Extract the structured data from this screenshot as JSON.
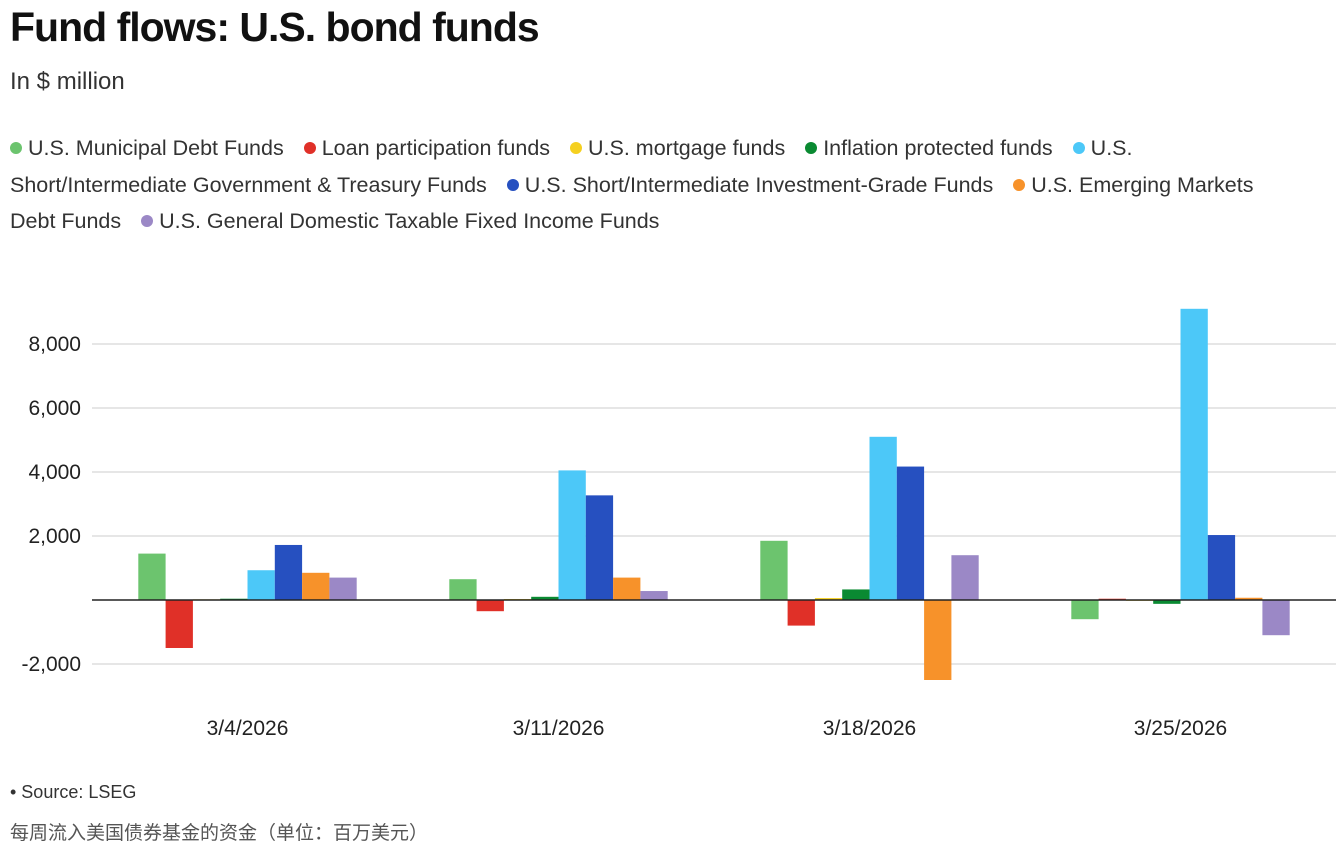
{
  "title": "Fund flows: U.S. bond funds",
  "subtitle": "In $ million",
  "legend": [
    {
      "label": "U.S. Municipal Debt Funds",
      "color": "#6cc46e"
    },
    {
      "label": "Loan participation funds",
      "color": "#e03028"
    },
    {
      "label": "U.S. mortgage funds",
      "color": "#f5d020"
    },
    {
      "label": "Inflation protected funds",
      "color": "#0a8a32"
    },
    {
      "label": "U.S. Short/Intermediate Government & Treasury Funds",
      "color": "#4cc8f8"
    },
    {
      "label": "U.S. Short/Intermediate Investment-Grade Funds",
      "color": "#2650c0"
    },
    {
      "label": "U.S. Emerging Markets Debt Funds",
      "color": "#f7922a"
    },
    {
      "label": "U.S. General Domestic Taxable Fixed Income Funds",
      "color": "#9b88c6"
    }
  ],
  "chart_data": {
    "type": "bar",
    "title": "Fund flows: U.S. bond funds",
    "ylabel": "In $ million",
    "xlabel": "",
    "categories": [
      "3/4/2026",
      "3/11/2026",
      "3/18/2026",
      "3/25/2026"
    ],
    "ylim": [
      -3000,
      9500
    ],
    "yticks": [
      -2000,
      2000,
      4000,
      6000,
      8000
    ],
    "ytick_labels": [
      "-2,000",
      "2,000",
      "4,000",
      "6,000",
      "8,000"
    ],
    "grid": true,
    "series": [
      {
        "name": "U.S. Municipal Debt Funds",
        "color": "#6cc46e",
        "values": [
          1450,
          650,
          1850,
          -600
        ]
      },
      {
        "name": "Loan participation funds",
        "color": "#e03028",
        "values": [
          -1500,
          -350,
          -800,
          40
        ]
      },
      {
        "name": "U.S. mortgage funds",
        "color": "#f5d020",
        "values": [
          20,
          30,
          60,
          -20
        ]
      },
      {
        "name": "Inflation protected funds",
        "color": "#0a8a32",
        "values": [
          40,
          100,
          330,
          -120
        ]
      },
      {
        "name": "U.S. Short/Intermediate Government & Treasury Funds",
        "color": "#4cc8f8",
        "values": [
          930,
          4050,
          5100,
          9100
        ]
      },
      {
        "name": "U.S. Short/Intermediate Investment-Grade Funds",
        "color": "#2650c0",
        "values": [
          1720,
          3270,
          4170,
          2030
        ]
      },
      {
        "name": "U.S. Emerging Markets Debt Funds",
        "color": "#f7922a",
        "values": [
          850,
          700,
          -2500,
          70
        ]
      },
      {
        "name": "U.S. General Domestic Taxable Fixed Income Funds",
        "color": "#9b88c6",
        "values": [
          700,
          280,
          1400,
          -1100
        ]
      }
    ]
  },
  "footer": {
    "source": "• Source: LSEG",
    "note": "每周流入美国债券基金的资金（单位：百万美元）"
  }
}
